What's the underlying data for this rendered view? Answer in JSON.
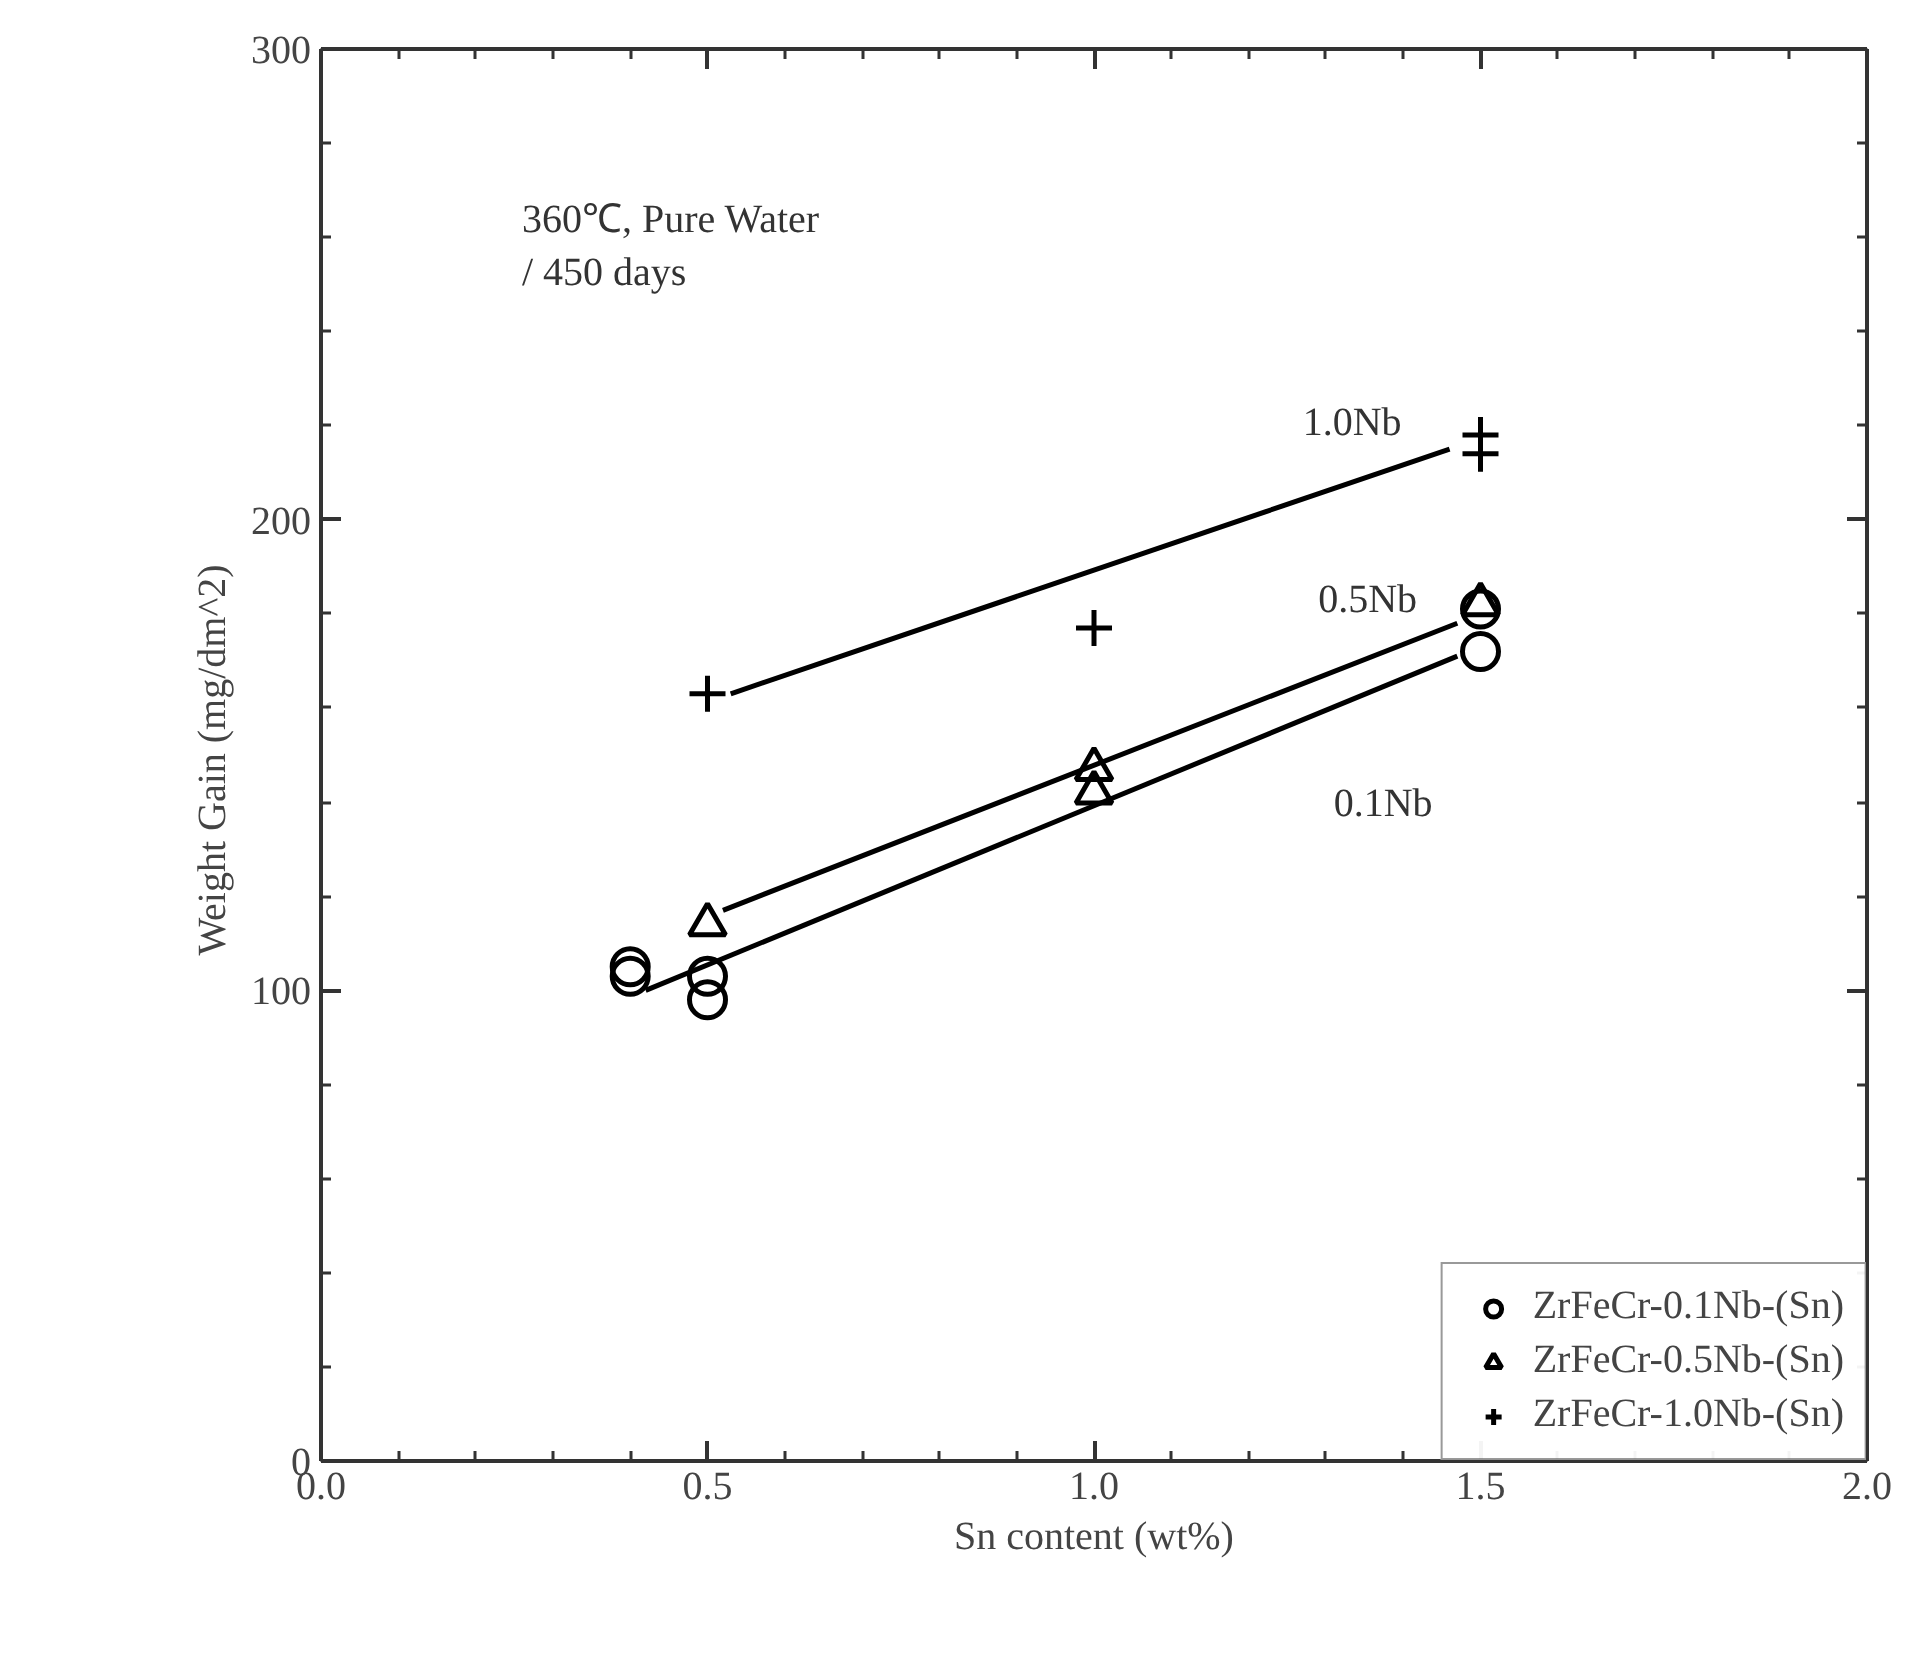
{
  "chart_data": {
    "type": "scatter",
    "xlabel": "Sn content (wt%)",
    "ylabel": "Weight Gain  (mg/dm^2)",
    "xlim": [
      0,
      2
    ],
    "ylim": [
      0,
      300
    ],
    "xticks": [
      {
        "value": 0,
        "label": "0.0"
      },
      {
        "value": 0.5,
        "label": "0.5"
      },
      {
        "value": 1,
        "label": "1.0"
      },
      {
        "value": 1.5,
        "label": "1.5"
      },
      {
        "value": 2,
        "label": "2.0"
      }
    ],
    "yticks": [
      0,
      100,
      200,
      300
    ],
    "grid": false,
    "legend": "bottom right",
    "series": [
      {
        "name": "ZrFeCr-0.1Nb-(Sn)",
        "color": "#000000",
        "marker": "circle",
        "x": [
          0.4,
          0.4,
          0.5,
          0.5,
          1.5,
          1.5
        ],
        "values": [
          105,
          103,
          103,
          98,
          181,
          172
        ]
      },
      {
        "name": "ZrFeCr-0.5Nb-(Sn)",
        "color": "#000000",
        "marker": "triangle",
        "x": [
          0.5,
          1.0,
          1.0,
          1.5
        ],
        "values": [
          114,
          147,
          142,
          182
        ]
      },
      {
        "name": "ZrFeCr-1.0Nb-(Sn)",
        "color": "#000000",
        "marker": "cross",
        "x": [
          0.5,
          1.0,
          1.5,
          1.5
        ],
        "values": [
          163,
          177,
          218,
          214
        ]
      },
      {
        "type": "line",
        "color": "#000000",
        "x": [
          0.53,
          1.46
        ],
        "values": [
          163,
          215
        ]
      },
      {
        "type": "line",
        "color": "#000000",
        "x": [
          0.52,
          1.47
        ],
        "values": [
          117,
          178
        ]
      },
      {
        "type": "line",
        "color": "#000000",
        "x": [
          0.42,
          1.47
        ],
        "values": [
          100,
          171
        ]
      }
    ],
    "annotations": [
      "360℃, Pure Water\n/ 450 days",
      "1.0Nb",
      "0.5Nb",
      "0.1Nb"
    ]
  }
}
